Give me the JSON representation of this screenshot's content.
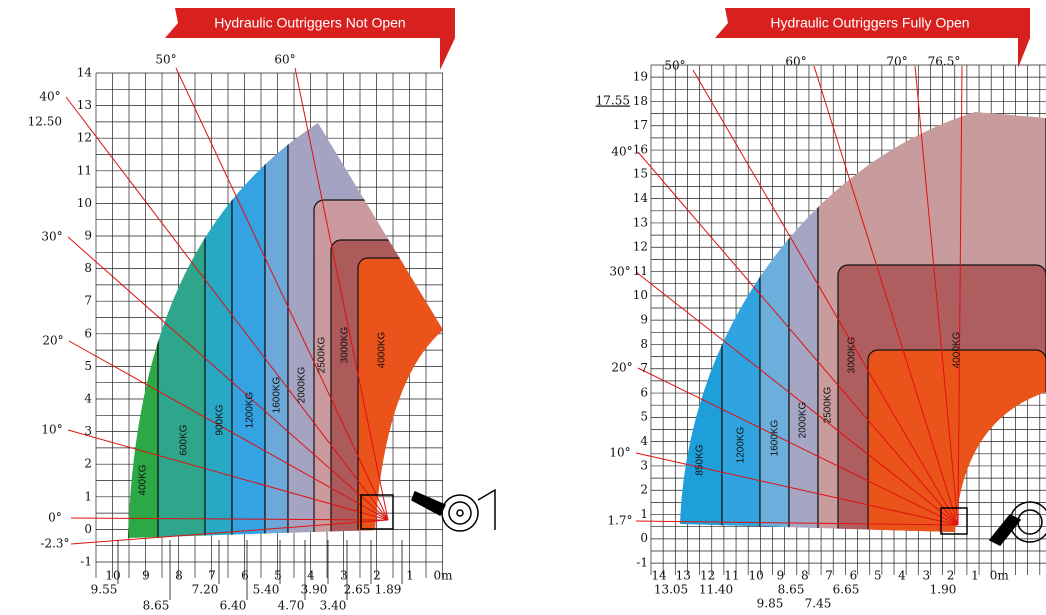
{
  "left_chart": {
    "banner": "Hydraulic Outriggers Not Open",
    "y_labels": [
      "14",
      "13",
      "12",
      "11",
      "10",
      "9",
      "8",
      "7",
      "6",
      "5",
      "4",
      "3",
      "2",
      "1",
      "0",
      "-1"
    ],
    "extra_y_label": "12.50",
    "angles": [
      "60°",
      "50°",
      "40°",
      "30°",
      "20°",
      "10°",
      "0°",
      "-2.3°"
    ],
    "x_labels": [
      "10",
      "9",
      "8",
      "7",
      "6",
      "5",
      "4",
      "3",
      "2",
      "1",
      "0m"
    ],
    "x_offsets": [
      "9.55",
      "8.65",
      "7.20",
      "6.40",
      "5.40",
      "4.70",
      "3.90",
      "3.40",
      "2.65",
      "1.89"
    ],
    "zones": [
      "400KG",
      "600KG",
      "900KG",
      "1200KG",
      "1600KG",
      "2000KG",
      "2500KG",
      "3000KG",
      "4000KG"
    ]
  },
  "right_chart": {
    "banner": "Hydraulic Outriggers Fully Open",
    "y_labels": [
      "19",
      "18",
      "17",
      "16",
      "15",
      "14",
      "13",
      "12",
      "11",
      "10",
      "9",
      "8",
      "7",
      "6",
      "5",
      "4",
      "3",
      "2",
      "1",
      "0",
      "-1"
    ],
    "extra_y_label": "17.55",
    "angles": [
      "76.5°",
      "70°",
      "60°",
      "50°",
      "40°",
      "30°",
      "20°",
      "10°",
      "1.7°"
    ],
    "x_labels": [
      "14",
      "13",
      "12",
      "11",
      "10",
      "9",
      "8",
      "7",
      "6",
      "5",
      "4",
      "3",
      "2",
      "1",
      "0m"
    ],
    "x_offsets": [
      "13.05",
      "11.40",
      "9.85",
      "8.65",
      "7.45",
      "6.65",
      "1.90"
    ],
    "zones": [
      "850KG",
      "1200KG",
      "1600KG",
      "2000KG",
      "2500KG",
      "3000KG",
      "4000KG"
    ]
  }
}
